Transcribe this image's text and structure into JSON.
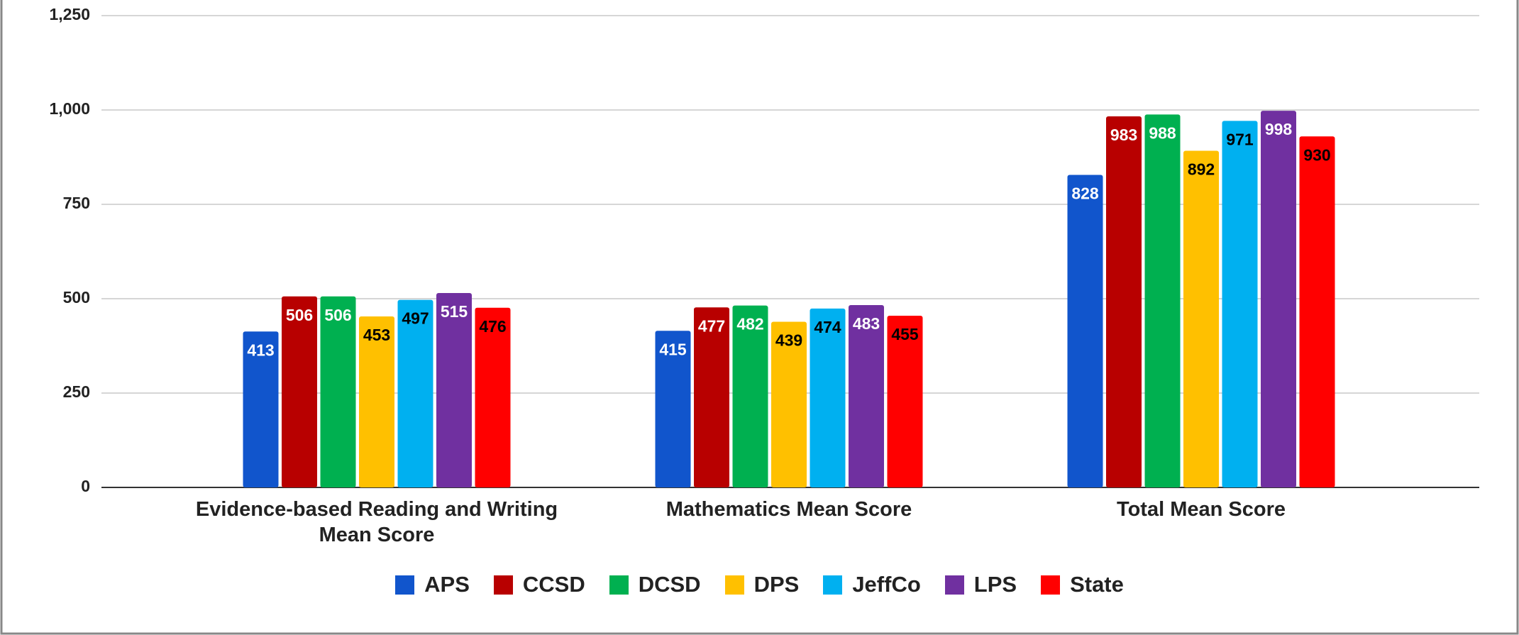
{
  "chart_data": {
    "type": "bar",
    "categories": [
      "Evidence-based Reading and Writing Mean Score",
      "Mathematics Mean Score",
      "Total Mean Score"
    ],
    "series": [
      {
        "name": "APS",
        "color": "#1155cc",
        "label_color": "#ffffff",
        "values": [
          413,
          415,
          828
        ]
      },
      {
        "name": "CCSD",
        "color": "#b80000",
        "label_color": "#ffffff",
        "values": [
          506,
          477,
          983
        ]
      },
      {
        "name": "DCSD",
        "color": "#00b050",
        "label_color": "#ffffff",
        "values": [
          506,
          482,
          988
        ]
      },
      {
        "name": "DPS",
        "color": "#ffc000",
        "label_color": "#000000",
        "values": [
          453,
          439,
          892
        ]
      },
      {
        "name": "JeffCo",
        "color": "#00b0f0",
        "label_color": "#000000",
        "values": [
          497,
          474,
          971
        ]
      },
      {
        "name": "LPS",
        "color": "#7030a0",
        "label_color": "#ffffff",
        "values": [
          515,
          483,
          998
        ]
      },
      {
        "name": "State",
        "color": "#ff0000",
        "label_color": "#000000",
        "values": [
          476,
          455,
          930
        ]
      }
    ],
    "ylim": [
      0,
      1250
    ],
    "yticks": [
      0,
      250,
      500,
      750,
      {
        "value": 1000,
        "label": "1,000"
      },
      {
        "value": 1250,
        "label": "1,250"
      }
    ],
    "grid": true,
    "legend": "bottom"
  }
}
